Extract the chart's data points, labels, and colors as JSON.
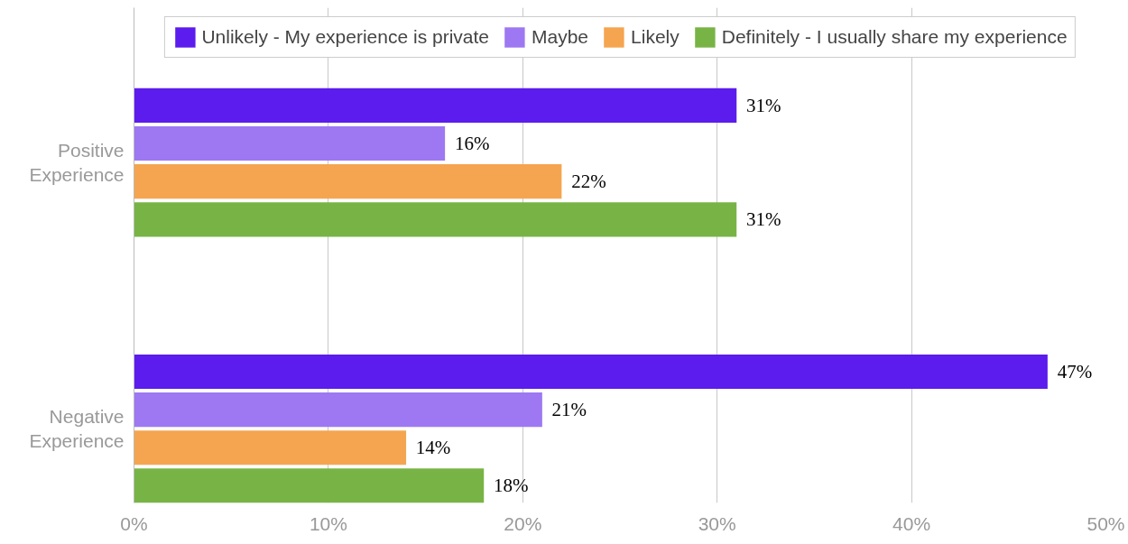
{
  "chart_data": {
    "type": "bar",
    "orientation": "horizontal",
    "categories": [
      "Positive Experience",
      "Negative Experience"
    ],
    "series": [
      {
        "name": "Unlikely - My experience is private",
        "color": "#5b1ced",
        "values": [
          31,
          47
        ],
        "value_labels": [
          "31%",
          "47%"
        ]
      },
      {
        "name": "Maybe",
        "color": "#9d78f2",
        "values": [
          16,
          21
        ],
        "value_labels": [
          "16%",
          "21%"
        ]
      },
      {
        "name": "Likely",
        "color": "#f5a54f",
        "values": [
          22,
          14
        ],
        "value_labels": [
          "22%",
          "14%"
        ]
      },
      {
        "name": "Definitely - I usually share my experience",
        "color": "#78b445",
        "values": [
          31,
          18
        ],
        "value_labels": [
          "31%",
          "18%"
        ]
      }
    ],
    "xlim": [
      0,
      50
    ],
    "xticks": [
      {
        "value": 0,
        "label": "0%"
      },
      {
        "value": 10,
        "label": "10%"
      },
      {
        "value": 20,
        "label": "20%"
      },
      {
        "value": 30,
        "label": "30%"
      },
      {
        "value": 40,
        "label": "40%"
      },
      {
        "value": 50,
        "label": "50%"
      }
    ],
    "grid": "x",
    "legend": "top"
  }
}
